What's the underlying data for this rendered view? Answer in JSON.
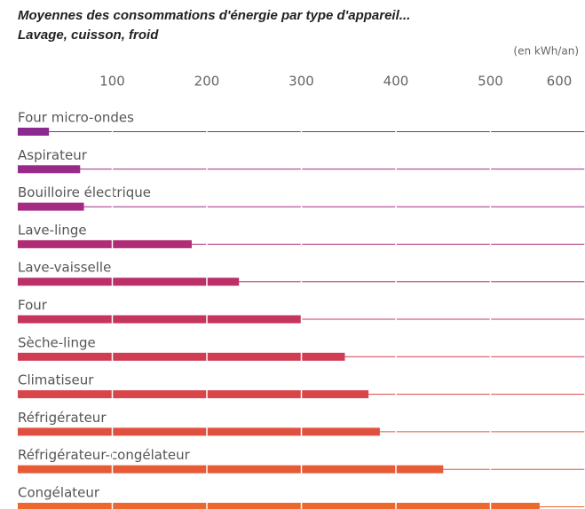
{
  "chart_data": {
    "type": "bar",
    "orientation": "horizontal",
    "title": "Moyennes des consommations d'énergie par type d'appareil...",
    "subtitle": "Lavage, cuisson, froid",
    "unit_label": "(en kWh/an)",
    "categories": [
      "Four micro-ondes",
      "Aspirateur",
      "Bouilloire électrique",
      "Lave-linge",
      "Lave-vaisselle",
      "Four",
      "Sèche-linge",
      "Climatiseur",
      "Réfrigérateur",
      "Réfrigérateur-congélateur",
      "Congélateur"
    ],
    "values": [
      33,
      66,
      70,
      184,
      234,
      300,
      346,
      371,
      383,
      450,
      552
    ],
    "colors": [
      "#8b2a8e",
      "#9a2a89",
      "#a52a81",
      "#b02d75",
      "#bb3069",
      "#c6355d",
      "#d03d53",
      "#d8464a",
      "#e05040",
      "#e65b36",
      "#ec682c"
    ],
    "xlim": [
      0,
      600
    ],
    "xticks": [
      100,
      200,
      300,
      400,
      500,
      600
    ]
  }
}
